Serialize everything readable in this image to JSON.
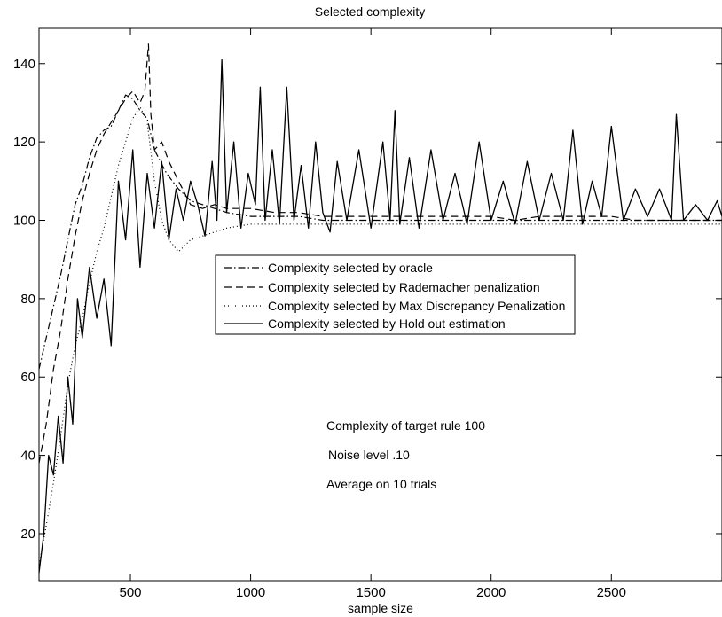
{
  "chart_data": {
    "type": "line",
    "title": "Selected complexity",
    "xlabel": "sample size",
    "ylabel": "",
    "xlim": [
      120,
      2960
    ],
    "ylim": [
      8,
      149
    ],
    "xticks": [
      500,
      1000,
      1500,
      2000,
      2500
    ],
    "yticks": [
      20,
      40,
      60,
      80,
      100,
      120,
      140
    ],
    "grid": false,
    "legend_position": "center",
    "annotations": [
      "Complexity of target rule 100",
      "Noise level .10",
      "Average on 10 trials"
    ],
    "series": [
      {
        "name": "Complexity selected  by oracle",
        "style": "dashdot",
        "x": [
          120,
          150,
          180,
          210,
          240,
          270,
          300,
          330,
          360,
          390,
          420,
          450,
          480,
          510,
          540,
          570,
          600,
          650,
          700,
          750,
          800,
          850,
          900,
          1000,
          1100,
          1200,
          1300,
          1400,
          1500,
          1600,
          1700,
          1800,
          1900,
          2000,
          2100,
          2200,
          2300,
          2400,
          2500,
          2600,
          2700,
          2800,
          2900,
          2960
        ],
        "y": [
          62,
          70,
          78,
          86,
          95,
          104,
          109,
          116,
          121,
          123,
          124,
          128,
          132,
          131,
          128,
          126,
          118,
          112,
          108,
          105,
          104,
          103,
          102,
          101,
          101,
          101,
          100,
          100,
          100,
          100,
          100,
          100,
          100,
          100,
          100,
          100,
          100,
          100,
          100,
          100,
          100,
          100,
          100,
          100
        ]
      },
      {
        "name": "Complexity selected by Rademacher penalization",
        "style": "dashed",
        "x": [
          120,
          150,
          180,
          210,
          240,
          270,
          300,
          330,
          360,
          390,
          420,
          450,
          480,
          510,
          540,
          560,
          575,
          585,
          600,
          630,
          660,
          700,
          750,
          800,
          850,
          900,
          1000,
          1100,
          1200,
          1300,
          1400,
          1500,
          1600,
          1700,
          1800,
          1900,
          2000,
          2100,
          2200,
          2300,
          2400,
          2500,
          2600,
          2700,
          2800,
          2900,
          2960
        ],
        "y": [
          38,
          48,
          62,
          72,
          85,
          96,
          105,
          112,
          118,
          122,
          125,
          128,
          131,
          133,
          130,
          133,
          145,
          127,
          118,
          120,
          115,
          110,
          104,
          103,
          104,
          103,
          103,
          102,
          102,
          101,
          101,
          101,
          101,
          101,
          101,
          101,
          101,
          100,
          101,
          101,
          101,
          101,
          100,
          100,
          100,
          100,
          100
        ]
      },
      {
        "name": "Complexity selected by Max Discrepancy Penalization",
        "style": "dotted",
        "x": [
          120,
          150,
          180,
          210,
          240,
          270,
          300,
          330,
          360,
          390,
          420,
          450,
          480,
          510,
          540,
          570,
          600,
          630,
          660,
          700,
          750,
          800,
          850,
          900,
          1000,
          1100,
          1200,
          1300,
          1400,
          1500,
          1600,
          1700,
          1800,
          1900,
          2000,
          2100,
          2200,
          2300,
          2400,
          2500,
          2600,
          2700,
          2800,
          2900,
          2960
        ],
        "y": [
          12,
          22,
          33,
          45,
          58,
          68,
          75,
          84,
          92,
          98,
          106,
          114,
          120,
          126,
          129,
          125,
          110,
          100,
          95,
          92,
          95,
          96,
          97,
          98,
          99,
          99,
          99,
          99,
          99,
          99,
          99,
          99,
          99,
          99,
          99,
          99,
          99,
          99,
          99,
          99,
          99,
          99,
          99,
          99,
          99
        ]
      },
      {
        "name": "Complexity selected by Hold out estimation",
        "style": "solid",
        "x": [
          120,
          140,
          160,
          180,
          200,
          220,
          240,
          260,
          280,
          300,
          330,
          360,
          390,
          420,
          450,
          480,
          510,
          540,
          570,
          600,
          630,
          660,
          690,
          720,
          750,
          780,
          810,
          840,
          860,
          880,
          900,
          930,
          960,
          990,
          1020,
          1040,
          1060,
          1090,
          1120,
          1150,
          1180,
          1210,
          1240,
          1270,
          1300,
          1330,
          1360,
          1400,
          1450,
          1500,
          1550,
          1580,
          1600,
          1620,
          1660,
          1700,
          1750,
          1800,
          1850,
          1900,
          1950,
          2000,
          2050,
          2100,
          2150,
          2200,
          2250,
          2300,
          2340,
          2380,
          2420,
          2460,
          2500,
          2550,
          2600,
          2650,
          2700,
          2750,
          2770,
          2800,
          2850,
          2900,
          2940,
          2960
        ],
        "y": [
          10,
          20,
          40,
          35,
          50,
          38,
          60,
          48,
          80,
          70,
          88,
          75,
          85,
          68,
          110,
          95,
          118,
          88,
          112,
          98,
          115,
          95,
          108,
          100,
          110,
          104,
          96,
          115,
          100,
          141,
          102,
          120,
          98,
          112,
          104,
          134,
          100,
          118,
          99,
          134,
          100,
          114,
          98,
          120,
          102,
          97,
          115,
          100,
          118,
          98,
          120,
          100,
          128,
          99,
          116,
          98,
          118,
          100,
          112,
          99,
          120,
          100,
          110,
          99,
          115,
          100,
          112,
          100,
          123,
          99,
          110,
          101,
          124,
          100,
          108,
          101,
          108,
          100,
          127,
          100,
          104,
          100,
          105,
          101
        ]
      }
    ]
  }
}
